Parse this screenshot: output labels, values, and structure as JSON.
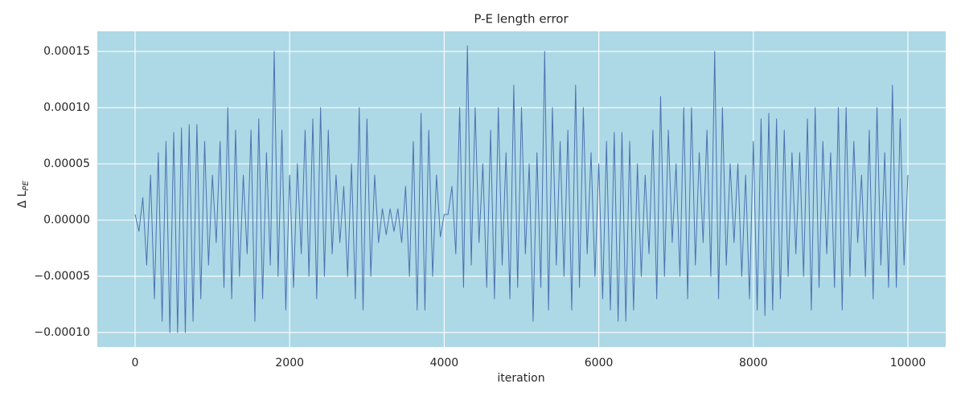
{
  "chart_data": {
    "type": "line",
    "title": "P-E length error",
    "xlabel": "iteration",
    "ylabel": "Δ L",
    "ylabel_subscript": "PE",
    "background": "#add8e6",
    "grid": true,
    "color": "#4c72b0",
    "xlim": [
      -489,
      10489
    ],
    "xticks": [
      0,
      2000,
      4000,
      6000,
      8000,
      10000
    ],
    "ylim": [
      -0.0001129,
      0.0001679
    ],
    "yticks": [
      {
        "value": -0.0001,
        "label": "−0.00010"
      },
      {
        "value": -5e-05,
        "label": "−0.00005"
      },
      {
        "value": 0,
        "label": "0.00000"
      },
      5e-05,
      {
        "value": 0.0001,
        "label": "0.00010"
      },
      0.00015
    ],
    "x": [
      0,
      50,
      100,
      150,
      200,
      250,
      300,
      350,
      400,
      450,
      500,
      550,
      600,
      650,
      700,
      750,
      800,
      850,
      900,
      950,
      1000,
      1050,
      1100,
      1150,
      1200,
      1250,
      1300,
      1350,
      1400,
      1450,
      1500,
      1550,
      1600,
      1650,
      1700,
      1750,
      1800,
      1850,
      1900,
      1950,
      2000,
      2050,
      2100,
      2150,
      2200,
      2250,
      2300,
      2350,
      2400,
      2450,
      2500,
      2550,
      2600,
      2650,
      2700,
      2750,
      2800,
      2850,
      2900,
      2950,
      3000,
      3050,
      3100,
      3150,
      3200,
      3250,
      3300,
      3350,
      3400,
      3450,
      3500,
      3550,
      3600,
      3650,
      3700,
      3750,
      3800,
      3850,
      3900,
      3950,
      4000,
      4050,
      4100,
      4150,
      4200,
      4250,
      4300,
      4350,
      4400,
      4450,
      4500,
      4550,
      4600,
      4650,
      4700,
      4750,
      4800,
      4850,
      4900,
      4950,
      5000,
      5050,
      5100,
      5150,
      5200,
      5250,
      5300,
      5350,
      5400,
      5450,
      5500,
      5550,
      5600,
      5650,
      5700,
      5750,
      5800,
      5850,
      5900,
      5950,
      6000,
      6050,
      6100,
      6150,
      6200,
      6250,
      6300,
      6350,
      6400,
      6450,
      6500,
      6550,
      6600,
      6650,
      6700,
      6750,
      6800,
      6850,
      6900,
      6950,
      7000,
      7050,
      7100,
      7150,
      7200,
      7250,
      7300,
      7350,
      7400,
      7450,
      7500,
      7550,
      7600,
      7650,
      7700,
      7750,
      7800,
      7850,
      7900,
      7950,
      8000,
      8050,
      8100,
      8150,
      8200,
      8250,
      8300,
      8350,
      8400,
      8450,
      8500,
      8550,
      8600,
      8650,
      8700,
      8750,
      8800,
      8850,
      8900,
      8950,
      9000,
      9050,
      9100,
      9150,
      9200,
      9250,
      9300,
      9350,
      9400,
      9450,
      9500,
      9550,
      9600,
      9650,
      9700,
      9750,
      9800,
      9850,
      9900,
      9950,
      10000
    ],
    "values": [
      5e-06,
      -1e-05,
      2e-05,
      -4e-05,
      4e-05,
      -7e-05,
      6e-05,
      -9e-05,
      7e-05,
      -0.0001,
      7.8e-05,
      -0.0001,
      8.2e-05,
      -0.0001,
      8.5e-05,
      -9e-05,
      8.5e-05,
      -7e-05,
      7e-05,
      -4e-05,
      4e-05,
      -2e-05,
      7e-05,
      -6e-05,
      0.0001,
      -7e-05,
      8e-05,
      -5e-05,
      4e-05,
      -3e-05,
      8e-05,
      -9e-05,
      9e-05,
      -7e-05,
      6e-05,
      -4e-05,
      0.00015,
      -5e-05,
      8e-05,
      -8e-05,
      4e-05,
      -6e-05,
      5e-05,
      -3e-05,
      8e-05,
      -5e-05,
      9e-05,
      -7e-05,
      0.0001,
      -5e-05,
      8e-05,
      -3e-05,
      4e-05,
      -2e-05,
      3e-05,
      -5e-05,
      5e-05,
      -7e-05,
      0.0001,
      -8e-05,
      9e-05,
      -5e-05,
      4e-05,
      -2e-05,
      1e-05,
      -1.3e-05,
      1e-05,
      -1e-05,
      1e-05,
      -2e-05,
      3e-05,
      -5e-05,
      7e-05,
      -8e-05,
      9.5e-05,
      -8e-05,
      8e-05,
      -5e-05,
      4e-05,
      -1.5e-05,
      5e-06,
      5e-06,
      3e-05,
      -3e-05,
      0.0001,
      -6e-05,
      0.000155,
      -4e-05,
      0.0001,
      -2e-05,
      5e-05,
      -6e-05,
      8e-05,
      -7e-05,
      0.0001,
      -4e-05,
      6e-05,
      -7e-05,
      0.00012,
      -6e-05,
      0.0001,
      -3e-05,
      5e-05,
      -9e-05,
      6e-05,
      -6e-05,
      0.00015,
      -8e-05,
      0.0001,
      -4e-05,
      7e-05,
      -5e-05,
      8e-05,
      -8e-05,
      0.00012,
      -6e-05,
      0.0001,
      -3e-05,
      6e-05,
      -5e-05,
      5e-05,
      -7e-05,
      7e-05,
      -8e-05,
      7.8e-05,
      -9e-05,
      7.8e-05,
      -9e-05,
      7e-05,
      -8e-05,
      5e-05,
      -5e-05,
      4e-05,
      -3e-05,
      8e-05,
      -7e-05,
      0.00011,
      -5e-05,
      8e-05,
      -2e-05,
      5e-05,
      -5e-05,
      0.0001,
      -7e-05,
      0.0001,
      -4e-05,
      6e-05,
      -2e-05,
      8e-05,
      -5e-05,
      0.00015,
      -7e-05,
      0.0001,
      -4e-05,
      5e-05,
      -2e-05,
      5e-05,
      -5e-05,
      4e-05,
      -7e-05,
      7e-05,
      -8e-05,
      9e-05,
      -8.5e-05,
      9.5e-05,
      -8e-05,
      9e-05,
      -7e-05,
      8e-05,
      -5e-05,
      6e-05,
      -3e-05,
      6e-05,
      -5e-05,
      9e-05,
      -8e-05,
      0.0001,
      -6e-05,
      7e-05,
      -3e-05,
      6e-05,
      -6e-05,
      0.0001,
      -8e-05,
      0.0001,
      -5e-05,
      7e-05,
      -2e-05,
      4e-05,
      -5e-05,
      8e-05,
      -7e-05,
      0.0001,
      -4e-05,
      6e-05,
      -6e-05,
      0.00012,
      -6e-05,
      9e-05,
      -4e-05,
      4e-05
    ]
  }
}
